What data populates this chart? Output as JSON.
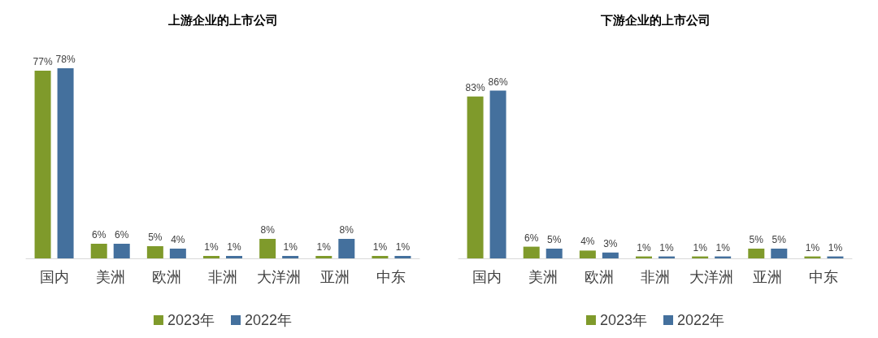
{
  "chart_data": [
    {
      "type": "bar",
      "title": "上游企业的上市公司",
      "categories": [
        "国内",
        "美洲",
        "欧洲",
        "非洲",
        "大洋洲",
        "亚洲",
        "中东"
      ],
      "legend": "bottom",
      "series": [
        {
          "name": "2023年",
          "color": "#7f9a2b",
          "values": [
            77,
            6,
            5,
            1,
            8,
            1,
            1
          ],
          "value_labels": [
            "77%",
            "6%",
            "5%",
            "1%",
            "8%",
            "1%",
            "1%"
          ]
        },
        {
          "name": "2022年",
          "color": "#44709d",
          "values": [
            78,
            6,
            4,
            1,
            1,
            8,
            1
          ],
          "value_labels": [
            "78%",
            "6%",
            "4%",
            "1%",
            "1%",
            "8%",
            "1%"
          ]
        }
      ]
    },
    {
      "type": "bar",
      "title": "下游企业的上市公司",
      "categories": [
        "国内",
        "美洲",
        "欧洲",
        "非洲",
        "大洋洲",
        "亚洲",
        "中东"
      ],
      "legend": "bottom",
      "series": [
        {
          "name": "2023年",
          "color": "#7f9a2b",
          "values": [
            83,
            6,
            4,
            1,
            1,
            5,
            1
          ],
          "value_labels": [
            "83%",
            "6%",
            "4%",
            "1%",
            "1%",
            "5%",
            "1%"
          ]
        },
        {
          "name": "2022年",
          "color": "#44709d",
          "values": [
            86,
            5,
            3,
            1,
            1,
            5,
            1
          ],
          "value_labels": [
            "86%",
            "5%",
            "3%",
            "1%",
            "1%",
            "5%",
            "1%"
          ]
        }
      ]
    }
  ]
}
